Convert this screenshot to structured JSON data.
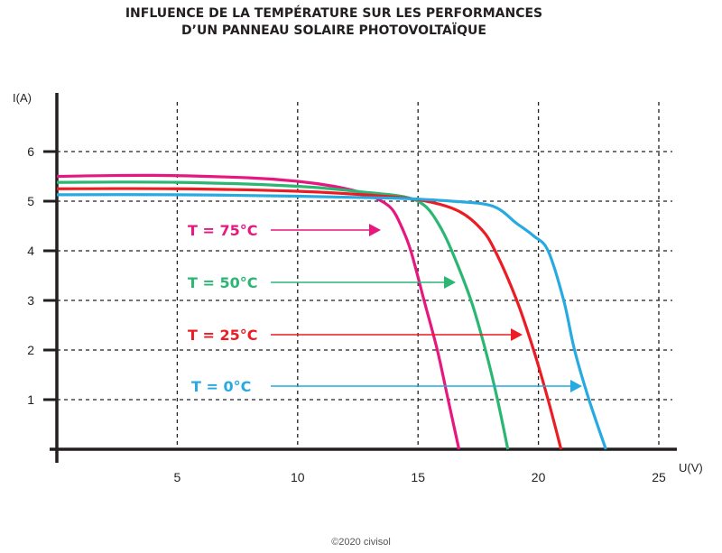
{
  "chart_data": {
    "type": "line",
    "title_lines": [
      "INFLUENCE DE LA TEMPÉRATURE SUR LES PERFORMANCES",
      "D’UN PANNEAU SOLAIRE PHOTOVOLTAÏQUE"
    ],
    "xlabel": "U(V)",
    "ylabel": "I(A)",
    "xlim": [
      0,
      26
    ],
    "ylim": [
      0,
      6.6
    ],
    "xticks": [
      5,
      10,
      15,
      20,
      25
    ],
    "yticks": [
      1,
      2,
      3,
      4,
      5,
      6
    ],
    "grid": true,
    "grid_style": "dashed",
    "series": [
      {
        "name": "T = 75°C",
        "color": "#e6177f",
        "x": [
          0,
          4,
          8,
          10,
          11.5,
          12.6,
          13.3,
          13.9,
          14.3,
          14.7,
          15.25,
          15.8,
          16.25,
          16.7
        ],
        "y": [
          5.5,
          5.52,
          5.47,
          5.4,
          5.3,
          5.18,
          5.05,
          4.85,
          4.5,
          4.0,
          3.0,
          2.0,
          1.0,
          0
        ]
      },
      {
        "name": "T = 50°C",
        "color": "#2bb673",
        "x": [
          0,
          5,
          10,
          13,
          14.5,
          15.3,
          15.9,
          16.4,
          17.2,
          17.8,
          18.3,
          18.73
        ],
        "y": [
          5.38,
          5.38,
          5.3,
          5.17,
          5.08,
          4.9,
          4.5,
          4.0,
          3.0,
          2.0,
          1.0,
          0
        ]
      },
      {
        "name": "T = 25°C",
        "color": "#ec1c24",
        "x": [
          0,
          5,
          10,
          13,
          15,
          16.6,
          17.6,
          18.2,
          19.1,
          19.8,
          20.4,
          20.94
        ],
        "y": [
          5.25,
          5.25,
          5.2,
          5.12,
          5.03,
          4.82,
          4.45,
          4.0,
          3.0,
          2.0,
          1.0,
          0
        ]
      },
      {
        "name": "T = 0°C",
        "color": "#27aae1",
        "x": [
          0,
          5,
          10,
          14,
          16.4,
          18.1,
          19.1,
          19.8,
          20.4,
          21.05,
          21.5,
          22.1,
          22.8
        ],
        "y": [
          5.13,
          5.13,
          5.1,
          5.06,
          5.0,
          4.9,
          4.55,
          4.3,
          4.0,
          3.0,
          2.0,
          1.0,
          0
        ]
      }
    ]
  },
  "footer": "©2020 civisol"
}
